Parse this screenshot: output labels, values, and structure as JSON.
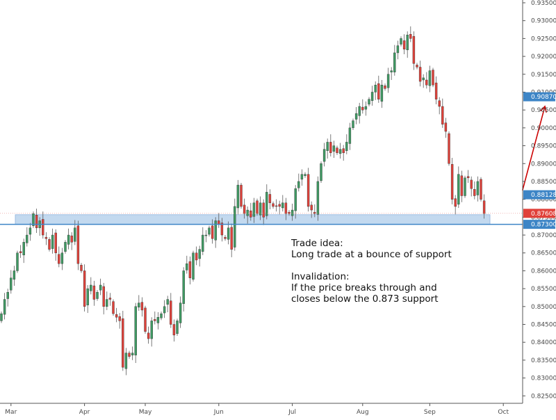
{
  "chart_data": {
    "type": "candlestick",
    "y_axis": {
      "position": "right",
      "range": [
        0.8235,
        0.935
      ],
      "ticks": [
        "0.93500",
        "0.93000",
        "0.92500",
        "0.92000",
        "0.91500",
        "0.91000",
        "0.90500",
        "0.90000",
        "0.89500",
        "0.89000",
        "0.88500",
        "0.88000",
        "0.87500",
        "0.87000",
        "0.86500",
        "0.86000",
        "0.85500",
        "0.85000",
        "0.84500",
        "0.84000",
        "0.83500",
        "0.83000",
        "0.82500"
      ]
    },
    "x_axis": {
      "ticks": [
        "Mar",
        "Apr",
        "May",
        "Jun",
        "Jul",
        "Aug",
        "Sep",
        "Oct"
      ],
      "tick_index": [
        3,
        26,
        45,
        68,
        91,
        113,
        134,
        157
      ]
    },
    "grid": false,
    "colors": {
      "up": "#3f9a63",
      "down": "#e0413a",
      "wick": "#5a5a5a",
      "zone": "#b9d2ec",
      "line": "#3d85c6",
      "arrow": "#cc0000",
      "current_badge": "#e0413a",
      "level_badge": "#3d85c6"
    },
    "closes": [
      0.848,
      0.852,
      0.854,
      0.858,
      0.86,
      0.865,
      0.865,
      0.868,
      0.87,
      0.872,
      0.876,
      0.872,
      0.874,
      0.87,
      0.869,
      0.866,
      0.87,
      0.865,
      0.862,
      0.865,
      0.868,
      0.87,
      0.868,
      0.872,
      0.862,
      0.86,
      0.85,
      0.855,
      0.856,
      0.852,
      0.854,
      0.856,
      0.85,
      0.852,
      0.852,
      0.848,
      0.847,
      0.846,
      0.833,
      0.837,
      0.836,
      0.837,
      0.85,
      0.851,
      0.849,
      0.843,
      0.841,
      0.846,
      0.846,
      0.847,
      0.848,
      0.85,
      0.852,
      0.845,
      0.842,
      0.846,
      0.851,
      0.86,
      0.862,
      0.858,
      0.865,
      0.863,
      0.866,
      0.87,
      0.87,
      0.872,
      0.869,
      0.874,
      0.873,
      0.87,
      0.869,
      0.872,
      0.866,
      0.878,
      0.884,
      0.878,
      0.876,
      0.877,
      0.875,
      0.879,
      0.876,
      0.879,
      0.875,
      0.882,
      0.879,
      0.878,
      0.878,
      0.878,
      0.879,
      0.876,
      0.876,
      0.877,
      0.883,
      0.885,
      0.887,
      0.887,
      0.878,
      0.877,
      0.876,
      0.885,
      0.89,
      0.894,
      0.896,
      0.893,
      0.895,
      0.893,
      0.894,
      0.893,
      0.896,
      0.9,
      0.902,
      0.904,
      0.906,
      0.905,
      0.906,
      0.908,
      0.91,
      0.912,
      0.908,
      0.912,
      0.911,
      0.915,
      0.916,
      0.921,
      0.923,
      0.925,
      0.922,
      0.926,
      0.925,
      0.918,
      0.917,
      0.913,
      0.914,
      0.912,
      0.916,
      0.912,
      0.908,
      0.906,
      0.901,
      0.899,
      0.89,
      0.88,
      0.878,
      0.887,
      0.881,
      0.886,
      0.886,
      0.883,
      0.881,
      0.885,
      0.88,
      0.876
    ],
    "annotations": {
      "support_zone": [
        0.873,
        0.8755
      ],
      "horizontal_line": 0.873,
      "arrow": {
        "from": {
          "index": 163,
          "price": 0.8825
        },
        "to": {
          "index": 170,
          "price": 0.906
        }
      }
    },
    "price_badges": [
      {
        "label": "0.90870",
        "price": 0.9087,
        "kind": "level"
      },
      {
        "label": "0.88128",
        "price": 0.88128,
        "kind": "level"
      },
      {
        "label": "0.87608",
        "price": 0.87608,
        "kind": "current"
      },
      {
        "label": "0.87300",
        "price": 0.873,
        "kind": "level"
      }
    ]
  },
  "note": {
    "line1": "Trade idea:",
    "line2": "Long trade at a bounce of support",
    "line3": "Invalidation:",
    "line4": "If the price breaks through and",
    "line5": "closes below the 0.873 support"
  }
}
